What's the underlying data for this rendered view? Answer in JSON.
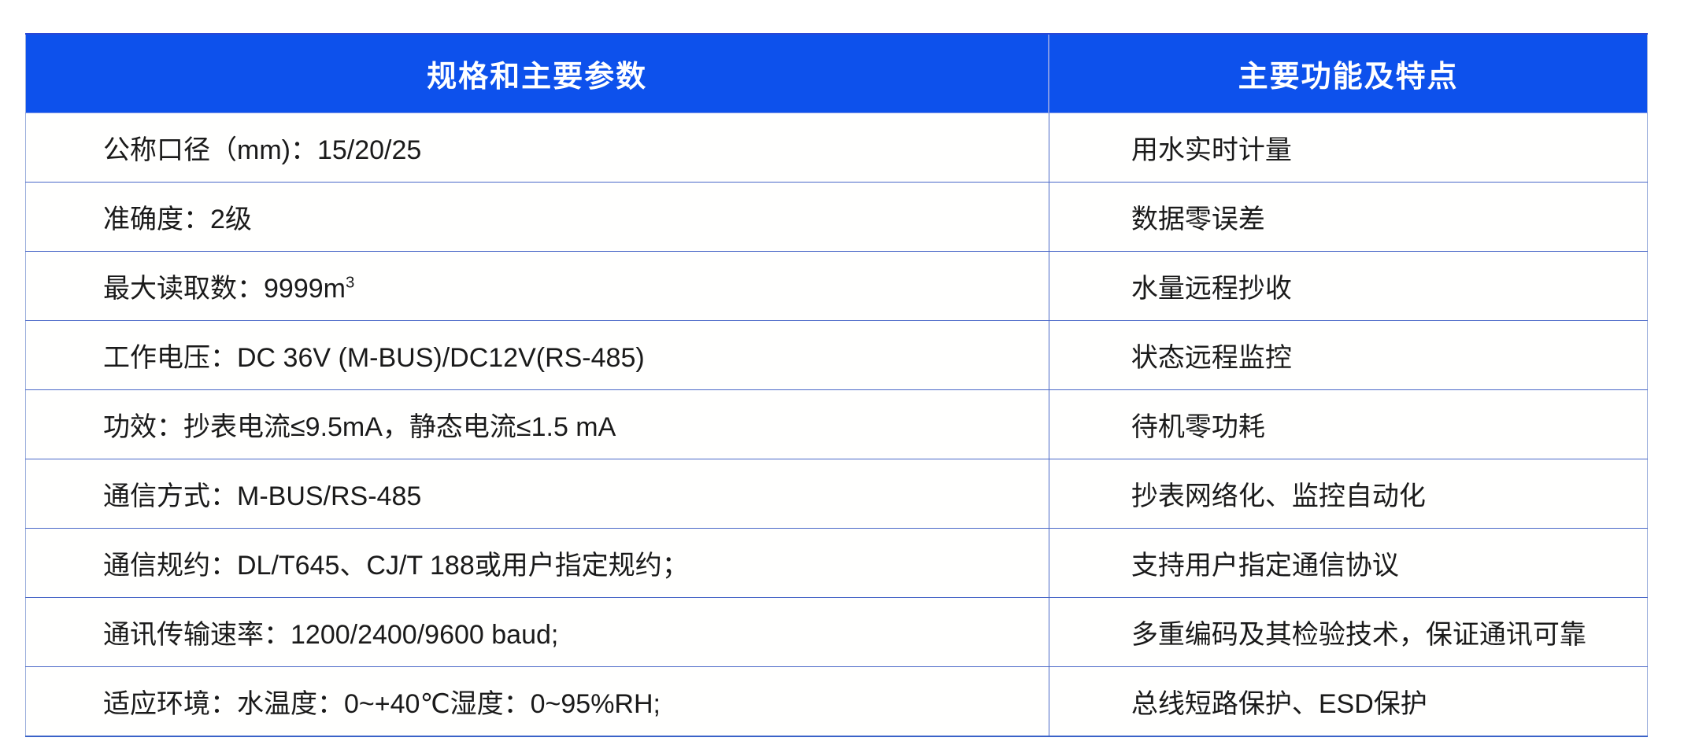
{
  "table": {
    "header": {
      "left": "规格和主要参数",
      "right": "主要功能及特点"
    },
    "rows": [
      {
        "left": "公称口径（mm)：15/20/25",
        "right": "用水实时计量"
      },
      {
        "left": "准确度：2级",
        "right": "数据零误差"
      },
      {
        "left": "最大读取数：9999m",
        "left_sup": "3",
        "right": "水量远程抄收"
      },
      {
        "left": "工作电压：DC 36V (M-BUS)/DC12V(RS-485)",
        "right": "状态远程监控"
      },
      {
        "left": "功效：抄表电流≤9.5mA，静态电流≤1.5 mA",
        "right": "待机零功耗"
      },
      {
        "left": "通信方式：M-BUS/RS-485",
        "right": "抄表网络化、监控自动化"
      },
      {
        "left": "通信规约：DL/T645、CJ/T 188或用户指定规约；",
        "right": "支持用户指定通信协议"
      },
      {
        "left": "通讯传输速率：1200/2400/9600 baud;",
        "right": "多重编码及其检验技术，保证通讯可靠"
      },
      {
        "left": "适应环境：水温度：0~+40℃湿度：0~95%RH;",
        "right": "总线短路保护、ESD保护"
      }
    ],
    "colors": {
      "header_bg": "#0d51ec",
      "header_text": "#ffffff",
      "row_separator": "#4a68c8",
      "outer_border": "#9cafdc",
      "bottom_border": "#3a62c8",
      "body_text": "#1a1a1a"
    }
  }
}
